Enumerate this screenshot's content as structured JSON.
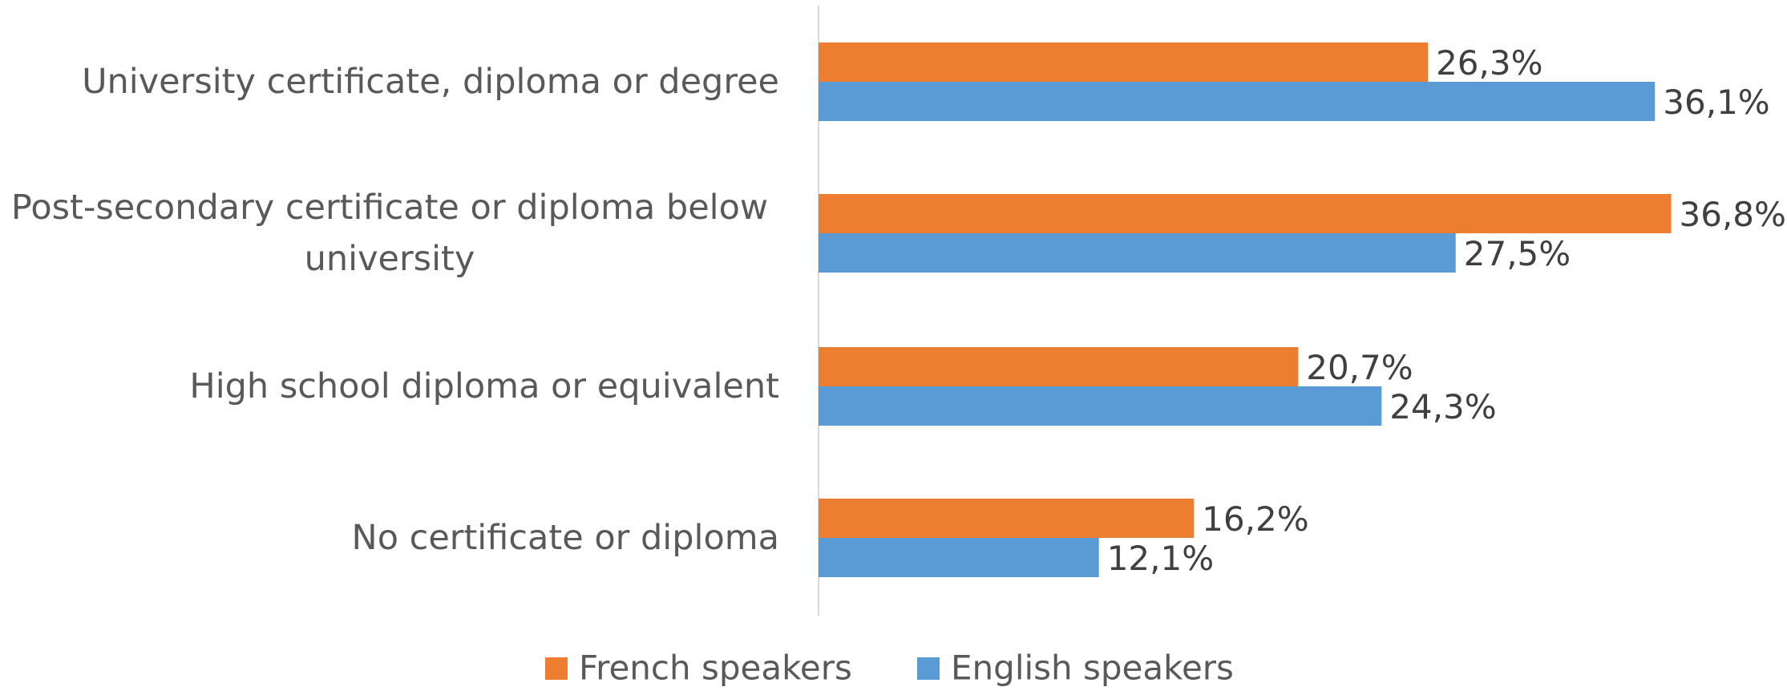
{
  "chart_data": {
    "type": "bar",
    "orientation": "horizontal",
    "categories": [
      "University certificate, diploma or degree",
      "Post-secondary certificate or diploma below university",
      "High school diploma or equivalent",
      "No certificate or diploma"
    ],
    "series": [
      {
        "name": "French speakers",
        "color": "#ED7D31",
        "values": [
          26.3,
          36.8,
          20.7,
          16.2
        ],
        "value_labels": [
          "26,3%",
          "36,8%",
          "20,7%",
          "16,2%"
        ]
      },
      {
        "name": "English speakers",
        "color": "#5B9BD5",
        "values": [
          36.1,
          27.5,
          24.3,
          12.1
        ],
        "value_labels": [
          "36,1%",
          "27,5%",
          "24,3%",
          "12,1%"
        ]
      }
    ],
    "xlim": [
      0,
      40
    ],
    "legend": "bottom"
  }
}
